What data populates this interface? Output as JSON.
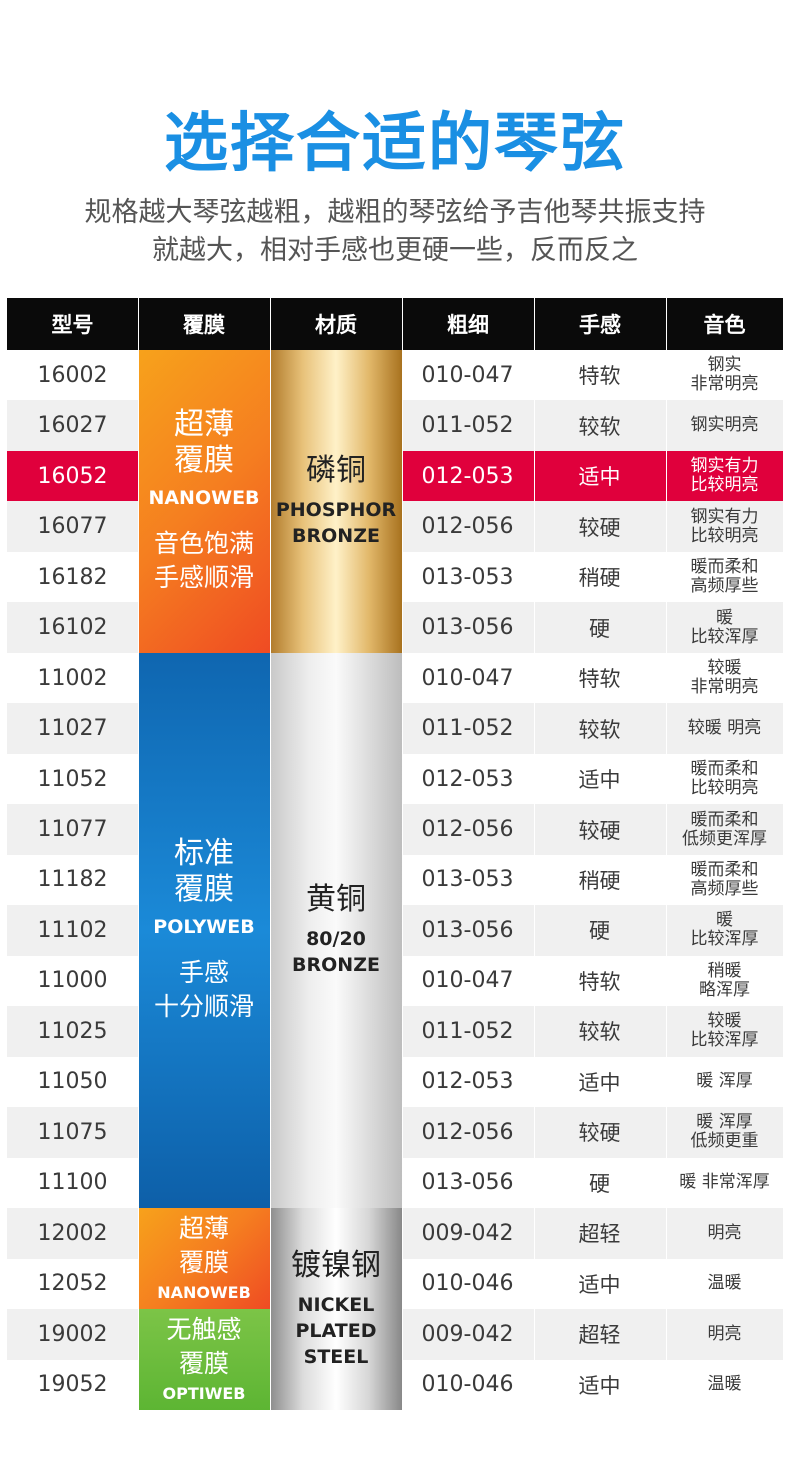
{
  "title": "选择合适的琴弦",
  "subtitle": [
    "规格越大琴弦越粗，越粗的琴弦给予吉他琴共振支持",
    "就越大，相对手感也更硬一些，反而反之"
  ],
  "headers": [
    "型号",
    "覆膜",
    "材质",
    "粗细",
    "手感",
    "音色"
  ],
  "colors": {
    "accent": "#1a8fe3",
    "highlight": "#e0003c",
    "header_bg": "#0a0a0a"
  },
  "rows": [
    {
      "model": "16002",
      "gauge": "010-047",
      "feel": "特软",
      "tone": [
        "钢实",
        "非常明亮"
      ]
    },
    {
      "model": "16027",
      "gauge": "011-052",
      "feel": "较软",
      "tone": [
        "钢实明亮"
      ]
    },
    {
      "model": "16052",
      "gauge": "012-053",
      "feel": "适中",
      "tone": [
        "钢实有力",
        "比较明亮"
      ],
      "highlight": true
    },
    {
      "model": "16077",
      "gauge": "012-056",
      "feel": "较硬",
      "tone": [
        "钢实有力",
        "比较明亮"
      ]
    },
    {
      "model": "16182",
      "gauge": "013-053",
      "feel": "稍硬",
      "tone": [
        "暖而柔和",
        "高频厚些"
      ]
    },
    {
      "model": "16102",
      "gauge": "013-056",
      "feel": "硬",
      "tone": [
        "暖",
        "比较浑厚"
      ]
    },
    {
      "model": "11002",
      "gauge": "010-047",
      "feel": "特软",
      "tone": [
        "较暖",
        "非常明亮"
      ]
    },
    {
      "model": "11027",
      "gauge": "011-052",
      "feel": "较软",
      "tone": [
        "较暖 明亮"
      ]
    },
    {
      "model": "11052",
      "gauge": "012-053",
      "feel": "适中",
      "tone": [
        "暖而柔和",
        "比较明亮"
      ]
    },
    {
      "model": "11077",
      "gauge": "012-056",
      "feel": "较硬",
      "tone": [
        "暖而柔和",
        "低频更浑厚"
      ]
    },
    {
      "model": "11182",
      "gauge": "013-053",
      "feel": "稍硬",
      "tone": [
        "暖而柔和",
        "高频厚些"
      ]
    },
    {
      "model": "11102",
      "gauge": "013-056",
      "feel": "硬",
      "tone": [
        "暖",
        "比较浑厚"
      ]
    },
    {
      "model": "11000",
      "gauge": "010-047",
      "feel": "特软",
      "tone": [
        "稍暖",
        "略浑厚"
      ]
    },
    {
      "model": "11025",
      "gauge": "011-052",
      "feel": "较软",
      "tone": [
        "较暖",
        "比较浑厚"
      ]
    },
    {
      "model": "11050",
      "gauge": "012-053",
      "feel": "适中",
      "tone": [
        "暖 浑厚"
      ]
    },
    {
      "model": "11075",
      "gauge": "012-056",
      "feel": "较硬",
      "tone": [
        "暖 浑厚",
        "低频更重"
      ]
    },
    {
      "model": "11100",
      "gauge": "013-056",
      "feel": "硬",
      "tone": [
        "暖 非常浑厚"
      ]
    },
    {
      "model": "12002",
      "gauge": "009-042",
      "feel": "超轻",
      "tone": [
        "明亮"
      ]
    },
    {
      "model": "12052",
      "gauge": "010-046",
      "feel": "适中",
      "tone": [
        "温暖"
      ]
    },
    {
      "model": "19002",
      "gauge": "009-042",
      "feel": "超轻",
      "tone": [
        "明亮"
      ]
    },
    {
      "model": "19052",
      "gauge": "010-046",
      "feel": "适中",
      "tone": [
        "温暖"
      ]
    }
  ],
  "films": [
    {
      "lines": [
        "超薄",
        "覆膜"
      ],
      "en": "NANOWEB",
      "desc": [
        "音色饱满",
        "手感顺滑"
      ],
      "rows": [
        0,
        6
      ],
      "style": "orange"
    },
    {
      "lines": [
        "标准",
        "覆膜"
      ],
      "en": "POLYWEB",
      "desc": [
        "手感",
        "十分顺滑"
      ],
      "rows": [
        6,
        17
      ],
      "style": "blue"
    },
    {
      "lines": [
        "超薄",
        "覆膜"
      ],
      "en": "NANOWEB",
      "desc": [],
      "rows": [
        17,
        19
      ],
      "style": "orange"
    },
    {
      "lines": [
        "无触感",
        "覆膜"
      ],
      "en": "OPTIWEB",
      "desc": [],
      "rows": [
        19,
        21
      ],
      "style": "green"
    }
  ],
  "materials": [
    {
      "name": "磷铜",
      "en": [
        "PHOSPHOR",
        "BRONZE"
      ],
      "rows": [
        0,
        6
      ],
      "style": "gold"
    },
    {
      "name": "黄铜",
      "en": [
        "80/20",
        "BRONZE"
      ],
      "rows": [
        6,
        17
      ],
      "style": "silver1"
    },
    {
      "name": "镀镍钢",
      "en": [
        "NICKEL",
        "PLATED",
        "STEEL"
      ],
      "rows": [
        17,
        21
      ],
      "style": "silver2"
    }
  ]
}
